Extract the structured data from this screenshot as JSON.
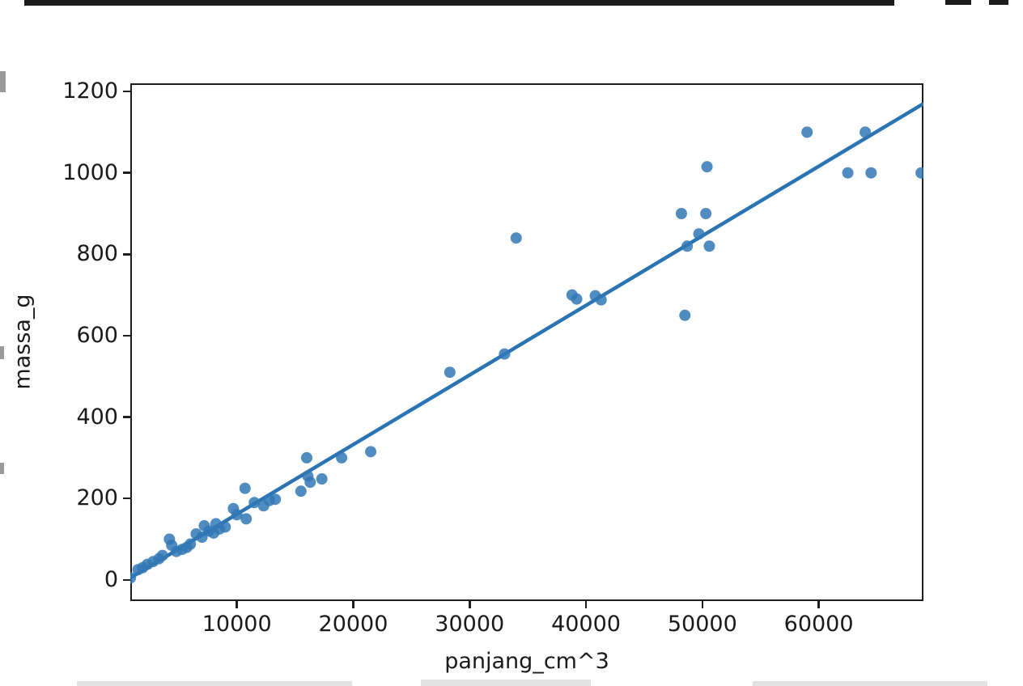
{
  "chart_data": {
    "type": "scatter",
    "title": "",
    "xlabel": "panjang_cm^3",
    "ylabel": "massa_g",
    "xlim": [
      840,
      69000
    ],
    "ylim": [
      -52,
      1220
    ],
    "x_ticks": [
      10000,
      20000,
      30000,
      40000,
      50000,
      60000
    ],
    "y_ticks": [
      0,
      200,
      400,
      600,
      800,
      1000,
      1200
    ],
    "grid": false,
    "legend_position": "none",
    "point_color": "#3178b5",
    "point_opacity": 0.85,
    "line_color": "#2b74b4",
    "axis_color": "#1f1f1f",
    "regression_line": {
      "x1": 840,
      "y1": 5,
      "x2": 69000,
      "y2": 1170
    },
    "points": [
      [
        850,
        5
      ],
      [
        1500,
        25
      ],
      [
        1900,
        30
      ],
      [
        2300,
        38
      ],
      [
        2800,
        45
      ],
      [
        3300,
        52
      ],
      [
        3600,
        60
      ],
      [
        4200,
        100
      ],
      [
        4400,
        85
      ],
      [
        4800,
        70
      ],
      [
        5300,
        75
      ],
      [
        5700,
        80
      ],
      [
        6000,
        88
      ],
      [
        6500,
        113
      ],
      [
        7000,
        105
      ],
      [
        7200,
        133
      ],
      [
        7600,
        120
      ],
      [
        8000,
        115
      ],
      [
        8200,
        138
      ],
      [
        8500,
        125
      ],
      [
        9000,
        130
      ],
      [
        9700,
        175
      ],
      [
        10000,
        160
      ],
      [
        10700,
        225
      ],
      [
        10800,
        150
      ],
      [
        11500,
        190
      ],
      [
        12300,
        182
      ],
      [
        12800,
        195
      ],
      [
        13300,
        198
      ],
      [
        15500,
        218
      ],
      [
        16000,
        300
      ],
      [
        16100,
        255
      ],
      [
        16300,
        240
      ],
      [
        17300,
        248
      ],
      [
        19000,
        300
      ],
      [
        21500,
        315
      ],
      [
        28300,
        510
      ],
      [
        33000,
        555
      ],
      [
        34000,
        840
      ],
      [
        38800,
        700
      ],
      [
        39200,
        690
      ],
      [
        40800,
        698
      ],
      [
        41300,
        688
      ],
      [
        48200,
        900
      ],
      [
        50300,
        900
      ],
      [
        50400,
        1015
      ],
      [
        49700,
        850
      ],
      [
        48700,
        820
      ],
      [
        50600,
        820
      ],
      [
        48500,
        650
      ],
      [
        59000,
        1100
      ],
      [
        64000,
        1100
      ],
      [
        62500,
        1000
      ],
      [
        64500,
        1000
      ],
      [
        68800,
        1000
      ]
    ]
  }
}
